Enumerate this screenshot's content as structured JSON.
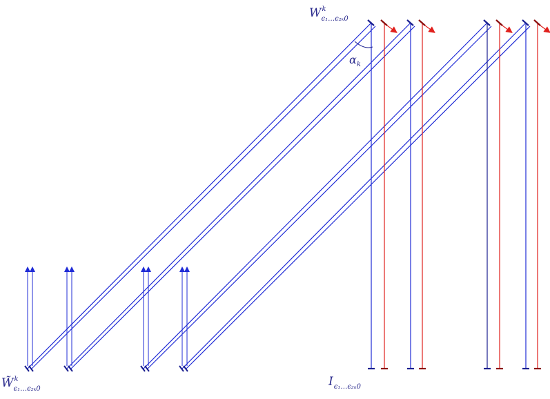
{
  "labels": {
    "w_top": {
      "main": "W",
      "sup": "k",
      "sub": "ϵ₁…ϵ₂ₖ0"
    },
    "w_bottom": {
      "main": "W̃",
      "sup": "k",
      "sub": "ϵ₁…ϵ₂ₖ0"
    },
    "angle": {
      "main": "α",
      "sub": "k"
    },
    "i_bottom": {
      "main": "I",
      "sub": "ϵ₁…ϵ₂ₖ0"
    }
  },
  "colors": {
    "blue": "#1f2bd6",
    "dark_blue": "#1a1f8f",
    "red": "#e0201c",
    "dark_red": "#8b0d0d",
    "label": "#2a2a8c"
  }
}
